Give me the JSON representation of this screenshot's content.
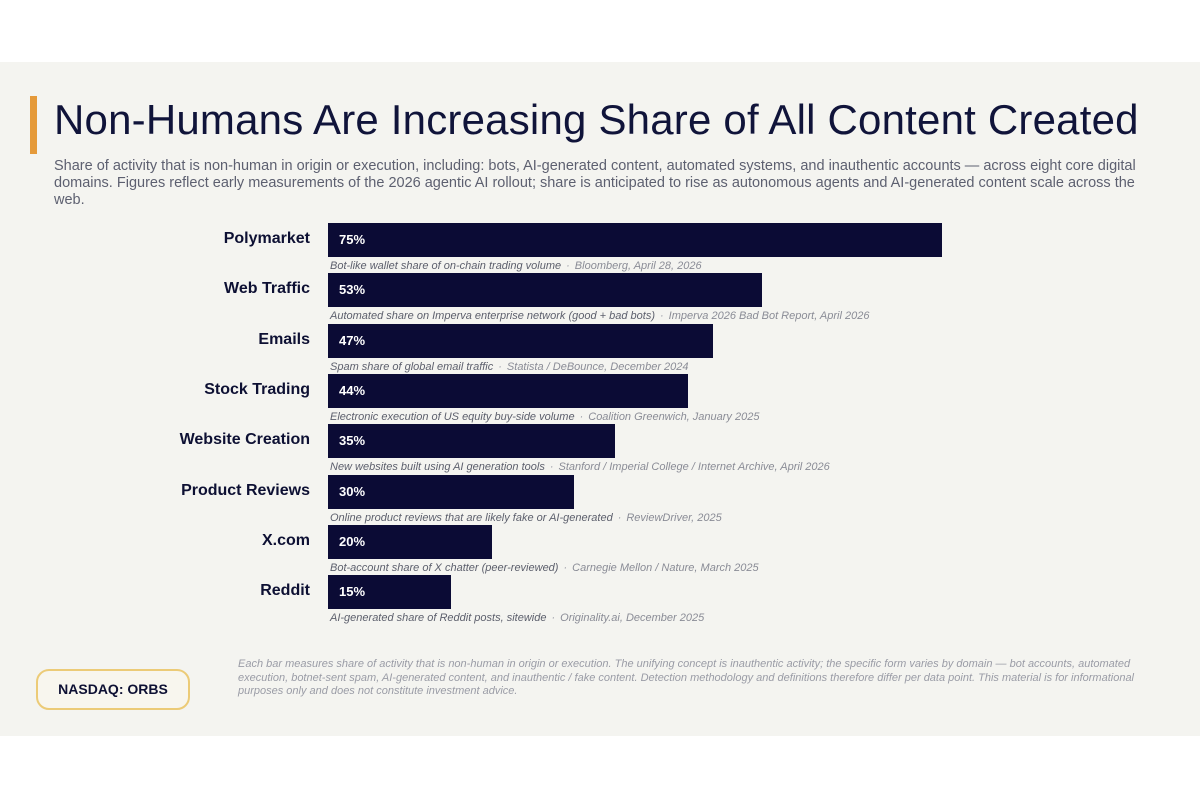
{
  "header": {
    "title": "Non-Humans Are Increasing Share of All Content Created",
    "subtitle": "Share of activity that is non-human in origin or execution, including: bots, AI-generated content, automated systems, and inauthentic accounts — across eight core digital domains. Figures reflect early measurements of the 2026 agentic AI rollout; share is anticipated to rise as autonomous agents and AI-generated content scale across the web."
  },
  "colors": {
    "bar": "#0b0b35",
    "accent": "#e59a3a",
    "ticker_border": "#eccb77",
    "background": "#f4f4f0"
  },
  "chart_data": {
    "type": "bar",
    "orientation": "horizontal",
    "title": "Non-Humans Are Increasing Share of All Content Created",
    "xlim": [
      0,
      100
    ],
    "grid": false,
    "categories": [
      "Polymarket",
      "Web Traffic",
      "Emails",
      "Stock Trading",
      "Website Creation",
      "Product Reviews",
      "X.com",
      "Reddit"
    ],
    "values": [
      75,
      53,
      47,
      44,
      35,
      30,
      20,
      15
    ],
    "value_labels": [
      "75%",
      "53%",
      "47%",
      "44%",
      "35%",
      "30%",
      "20%",
      "15%"
    ],
    "descriptions": [
      "Bot-like wallet share of on-chain trading volume",
      "Automated share on Imperva enterprise network (good + bad bots)",
      "Spam share of global email traffic",
      "Electronic execution of US equity buy-side volume",
      "New websites built using AI generation tools",
      "Online product reviews that are likely fake or AI-generated",
      "Bot-account share of X chatter (peer-reviewed)",
      "AI-generated share of Reddit posts, sitewide"
    ],
    "sources": [
      "Bloomberg, April 28, 2026",
      "Imperva 2026 Bad Bot Report, April 2026",
      "Statista / DeBounce, December 2024",
      "Coalition Greenwich, January 2025",
      "Stanford / Imperial College / Internet Archive, April 2026",
      "ReviewDriver, 2025",
      "Carnegie Mellon / Nature, March 2025",
      "Originality.ai, December 2025"
    ],
    "separator": "·"
  },
  "footer": {
    "ticker": "NASDAQ: ORBS",
    "footnote": "Each bar measures share of activity that is non-human in origin or execution. The unifying concept is inauthentic activity; the specific form varies by domain — bot accounts, automated execution, botnet-sent spam, AI-generated content, and inauthentic / fake content. Detection methodology and definitions therefore differ per data point. This material is for informational purposes only and does not constitute investment advice."
  }
}
